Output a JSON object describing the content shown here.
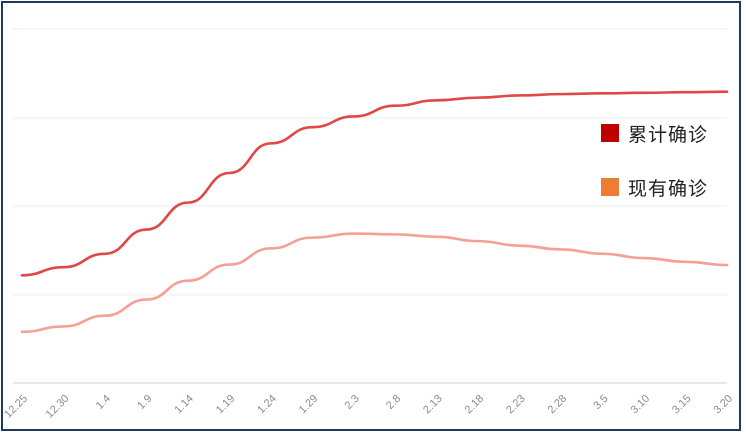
{
  "chart_data": {
    "type": "line",
    "x": [
      "12.25",
      "12.30",
      "1.4",
      "1.9",
      "1.14",
      "1.19",
      "1.24",
      "1.29",
      "2.3",
      "2.8",
      "2.13",
      "2.18",
      "2.23",
      "2.28",
      "3.5",
      "3.10",
      "3.15",
      "3.20"
    ],
    "series": [
      {
        "name": "累计确诊",
        "color": "#e04848",
        "values": [
          10,
          13,
          18,
          27,
          37,
          48,
          59,
          65,
          69,
          73,
          75,
          76,
          76.8,
          77.3,
          77.6,
          77.8,
          78,
          78.2
        ]
      },
      {
        "name": "现有确诊",
        "color": "#f59f96",
        "values": [
          -11,
          -9,
          -5,
          1,
          8,
          14,
          20,
          24,
          25.5,
          25.2,
          24.3,
          22.7,
          21,
          19.6,
          18,
          16.4,
          15,
          13.8
        ]
      }
    ],
    "ylim": [
      -30,
      100
    ],
    "grid": true,
    "legend_position": "right",
    "xlabel": "",
    "ylabel": ""
  },
  "legend": {
    "items": [
      {
        "label": "累计确诊",
        "color": "#c00000"
      },
      {
        "label": "现有确诊",
        "color": "#ed7d31"
      }
    ]
  }
}
